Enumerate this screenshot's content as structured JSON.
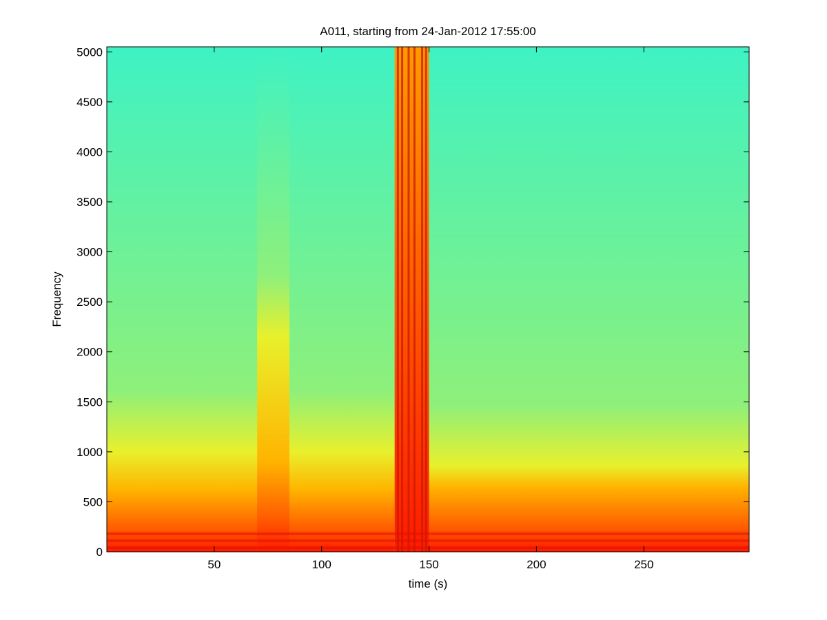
{
  "chart_data": {
    "type": "heatmap",
    "title": "A011, starting from 24-Jan-2012 17:55:00",
    "xlabel": "time (s)",
    "ylabel": "Frequency",
    "xlim": [
      0,
      299
    ],
    "ylim": [
      0,
      5050
    ],
    "xticks": [
      50,
      100,
      150,
      200,
      250
    ],
    "yticks": [
      0,
      500,
      1000,
      1500,
      2000,
      2500,
      3000,
      3500,
      4000,
      4500,
      5000
    ],
    "xtick_labels": [
      "50",
      "100",
      "150",
      "200",
      "250"
    ],
    "ytick_labels": [
      "0",
      "500",
      "1000",
      "1500",
      "2000",
      "2500",
      "3000",
      "3500",
      "4000",
      "4500",
      "5000"
    ],
    "colormap": "jet",
    "grid": false,
    "colors": {
      "background_noise": "#3ef2c4",
      "mid_energy": "#e8f02c",
      "high_energy": "#ff1a00"
    },
    "regions": [
      {
        "t_start": 0,
        "t_end": 134,
        "yellow_band_top_hz": 1000,
        "orange_band_top_hz": 620,
        "red_band_top_hz": 220
      },
      {
        "t_start": 70,
        "t_end": 85,
        "yellow_band_top_hz": 2150,
        "orange_band_top_hz": 900,
        "red_band_top_hz": 320
      },
      {
        "t_start": 134,
        "t_end": 150,
        "broadband_red_to_hz": 5050
      },
      {
        "t_start": 150,
        "t_end": 299,
        "yellow_band_top_hz": 860,
        "orange_band_top_hz": 650,
        "red_band_top_hz": 230
      }
    ]
  }
}
